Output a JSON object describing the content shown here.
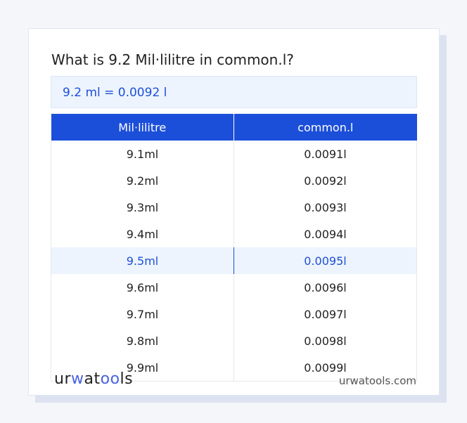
{
  "title": "What is 9.2 Mil·lilitre in common.l?",
  "result": "9.2 ml = 0.0092 l",
  "table": {
    "headers": [
      "Mil·lilitre",
      "common.l"
    ],
    "rows": [
      [
        "9.1ml",
        "0.0091l"
      ],
      [
        "9.2ml",
        "0.0092l"
      ],
      [
        "9.3ml",
        "0.0093l"
      ],
      [
        "9.4ml",
        "0.0094l"
      ],
      [
        "9.5ml",
        "0.0095l"
      ],
      [
        "9.6ml",
        "0.0096l"
      ],
      [
        "9.7ml",
        "0.0097l"
      ],
      [
        "9.8ml",
        "0.0098l"
      ],
      [
        "9.9ml",
        "0.0099l"
      ]
    ],
    "highlighted_row": 4
  },
  "footer": {
    "logo": "urwatools",
    "site": "urwatools.com"
  },
  "colors": {
    "accent": "#1c4fd9",
    "highlight_bg": "#edf4fe"
  }
}
